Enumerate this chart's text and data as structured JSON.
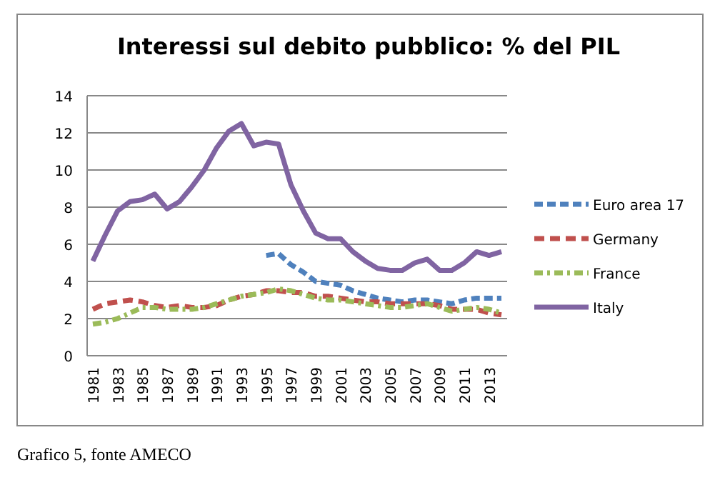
{
  "chart_data": {
    "type": "line",
    "title": "Interessi sul debito pubblico:  % del PIL",
    "categories": [
      "1981",
      null,
      "1983",
      null,
      "1985",
      null,
      "1987",
      null,
      "1989",
      null,
      "1991",
      null,
      "1993",
      null,
      "1995",
      null,
      "1997",
      null,
      "1999",
      null,
      "2001",
      null,
      "2003",
      null,
      "2005",
      null,
      "2007",
      null,
      "2009",
      null,
      "2011",
      null,
      "2013",
      null
    ],
    "series": [
      {
        "name": "Euro area 17",
        "color": "#4f81bd",
        "line_style": "dashed",
        "values": [
          null,
          null,
          null,
          null,
          null,
          null,
          null,
          null,
          null,
          null,
          null,
          null,
          null,
          null,
          5.4,
          5.5,
          4.9,
          4.5,
          4.0,
          3.9,
          3.8,
          3.5,
          3.3,
          3.1,
          3.0,
          2.9,
          3.0,
          3.0,
          2.9,
          2.8,
          3.0,
          3.1,
          3.1,
          3.1
        ]
      },
      {
        "name": "Germany",
        "color": "#c0504d",
        "line_style": "longdash",
        "values": [
          2.5,
          2.8,
          2.9,
          3.0,
          2.9,
          2.7,
          2.6,
          2.7,
          2.6,
          2.6,
          2.7,
          3.0,
          3.2,
          3.3,
          3.5,
          3.5,
          3.4,
          3.4,
          3.2,
          3.2,
          3.1,
          3.0,
          2.9,
          2.9,
          2.8,
          2.8,
          2.8,
          2.8,
          2.7,
          2.5,
          2.5,
          2.5,
          2.3,
          2.2
        ]
      },
      {
        "name": "France",
        "color": "#9bbb59",
        "line_style": "dashdot",
        "values": [
          1.7,
          1.8,
          2.0,
          2.3,
          2.6,
          2.6,
          2.5,
          2.5,
          2.5,
          2.6,
          2.8,
          3.0,
          3.2,
          3.3,
          3.4,
          3.6,
          3.5,
          3.3,
          3.1,
          3.0,
          3.0,
          2.9,
          2.8,
          2.7,
          2.6,
          2.6,
          2.7,
          2.8,
          2.6,
          2.4,
          2.5,
          2.6,
          2.5,
          2.3
        ]
      },
      {
        "name": "Italy",
        "color": "#8064a2",
        "line_style": "solid",
        "values": [
          5.1,
          6.5,
          7.8,
          8.3,
          8.4,
          8.7,
          7.9,
          8.3,
          9.1,
          10.0,
          11.2,
          12.1,
          12.5,
          11.3,
          11.5,
          11.4,
          9.2,
          7.8,
          6.6,
          6.3,
          6.3,
          5.6,
          5.1,
          4.7,
          4.6,
          4.6,
          5.0,
          5.2,
          4.6,
          4.6,
          5.0,
          5.6,
          5.4,
          5.6
        ]
      }
    ],
    "ylim": [
      0,
      14
    ],
    "yticks": [
      0,
      2,
      4,
      6,
      8,
      10,
      12,
      14
    ],
    "grid": "y",
    "legend": "right",
    "annotations": [
      "Grafico 5, fonte AMECO"
    ]
  }
}
